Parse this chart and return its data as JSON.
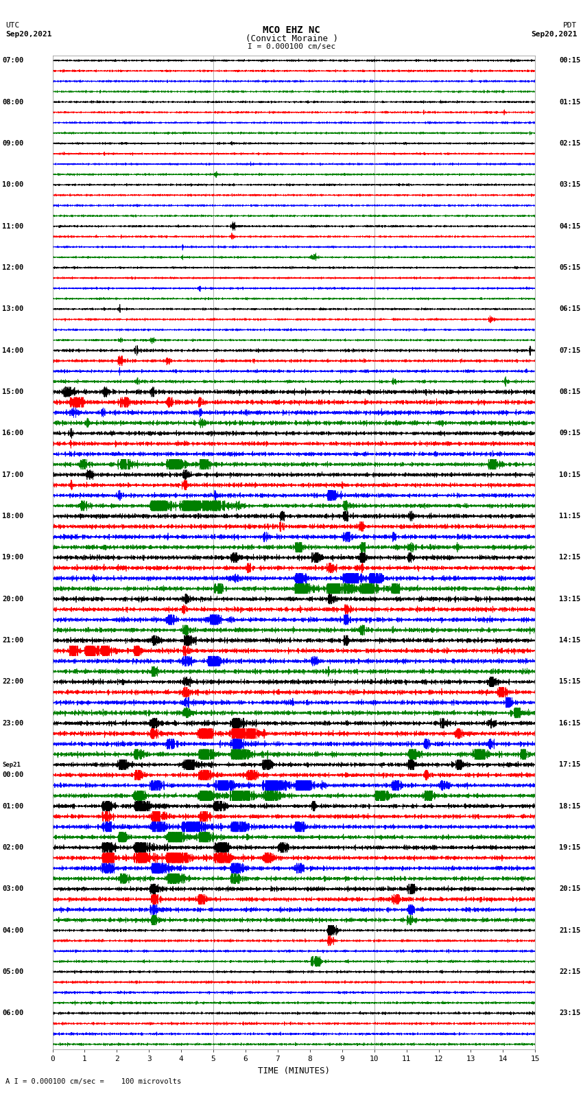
{
  "title_line1": "MCO EHZ NC",
  "title_line2": "(Convict Moraine )",
  "scale_label": "I = 0.000100 cm/sec",
  "footer_label": "A I = 0.000100 cm/sec =    100 microvolts",
  "utc_label": "UTC",
  "utc_date": "Sep20,2021",
  "pdt_label": "PDT",
  "pdt_date": "Sep20,2021",
  "xlabel": "TIME (MINUTES)",
  "xlim": [
    0,
    15
  ],
  "xticks": [
    0,
    1,
    2,
    3,
    4,
    5,
    6,
    7,
    8,
    9,
    10,
    11,
    12,
    13,
    14,
    15
  ],
  "bg_color": "#ffffff",
  "trace_color_cycle": [
    "black",
    "red",
    "blue",
    "green"
  ],
  "trace_lw": 0.5,
  "grid_color": "#999999",
  "vline_positions": [
    5.0,
    10.0
  ],
  "left_times": [
    "07:00",
    "",
    "",
    "",
    "08:00",
    "",
    "",
    "",
    "09:00",
    "",
    "",
    "",
    "10:00",
    "",
    "",
    "",
    "11:00",
    "",
    "",
    "",
    "12:00",
    "",
    "",
    "",
    "13:00",
    "",
    "",
    "",
    "14:00",
    "",
    "",
    "",
    "15:00",
    "",
    "",
    "",
    "16:00",
    "",
    "",
    "",
    "17:00",
    "",
    "",
    "",
    "18:00",
    "",
    "",
    "",
    "19:00",
    "",
    "",
    "",
    "20:00",
    "",
    "",
    "",
    "21:00",
    "",
    "",
    "",
    "22:00",
    "",
    "",
    "",
    "23:00",
    "",
    "",
    "",
    "Sep21",
    "00:00",
    "",
    "",
    "01:00",
    "",
    "",
    "",
    "02:00",
    "",
    "",
    "",
    "03:00",
    "",
    "",
    "",
    "04:00",
    "",
    "",
    "",
    "05:00",
    "",
    "",
    "",
    "06:00",
    "",
    "",
    ""
  ],
  "right_times": [
    "00:15",
    "",
    "",
    "",
    "01:15",
    "",
    "",
    "",
    "02:15",
    "",
    "",
    "",
    "03:15",
    "",
    "",
    "",
    "04:15",
    "",
    "",
    "",
    "05:15",
    "",
    "",
    "",
    "06:15",
    "",
    "",
    "",
    "07:15",
    "",
    "",
    "",
    "08:15",
    "",
    "",
    "",
    "09:15",
    "",
    "",
    "",
    "10:15",
    "",
    "",
    "",
    "11:15",
    "",
    "",
    "",
    "12:15",
    "",
    "",
    "",
    "13:15",
    "",
    "",
    "",
    "14:15",
    "",
    "",
    "",
    "15:15",
    "",
    "",
    "",
    "16:15",
    "",
    "",
    "",
    "17:15",
    "",
    "",
    "",
    "18:15",
    "",
    "",
    "",
    "19:15",
    "",
    "",
    "",
    "20:15",
    "",
    "",
    "",
    "21:15",
    "",
    "",
    "",
    "22:15",
    "",
    "",
    "",
    "23:15",
    "",
    "",
    ""
  ]
}
